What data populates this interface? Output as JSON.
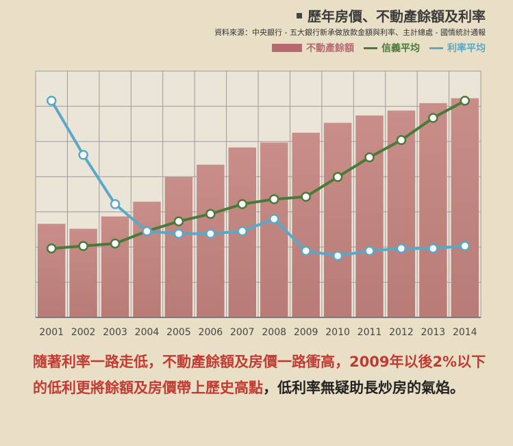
{
  "title": "歷年房價、不動產餘額及利率",
  "source": "資料來源：中央銀行 - 五大銀行新承做放款金額與利率、主計總處 - 國情統計通報",
  "legend": {
    "bar": "不動產餘額",
    "green": "信義平均",
    "blue": "利率平均"
  },
  "caption": {
    "highlight": "隨著利率一路走低，不動產餘額及房價一路衝高，2009年以後2%以下的低利更將餘額及房價帶上歷史高點",
    "rest": "，低利率無疑助長炒房的氣焰。"
  },
  "colors": {
    "bar": "#b56a70",
    "green": "#4a7a3a",
    "blue": "#5aa8c8",
    "caption_red": "#c23b32"
  },
  "chart_data": {
    "type": "bar",
    "categories": [
      "2001",
      "2002",
      "2003",
      "2004",
      "2005",
      "2006",
      "2007",
      "2008",
      "2009",
      "2010",
      "2011",
      "2012",
      "2013",
      "2014"
    ],
    "ylim": [
      0,
      100
    ],
    "grid": true,
    "series": [
      {
        "name": "不動產餘額",
        "type": "bar",
        "values": [
          38,
          36,
          41,
          47,
          57,
          62,
          69,
          71,
          75,
          79,
          82,
          84,
          87,
          89
        ]
      },
      {
        "name": "信義平均",
        "type": "line",
        "values": [
          28,
          29,
          30,
          35,
          39,
          42,
          46,
          48,
          49,
          57,
          65,
          72,
          81,
          88
        ]
      },
      {
        "name": "利率平均",
        "type": "line",
        "values": [
          88,
          66,
          46,
          35,
          34,
          34,
          35,
          40,
          27,
          25,
          27,
          28,
          28,
          29
        ]
      }
    ]
  }
}
